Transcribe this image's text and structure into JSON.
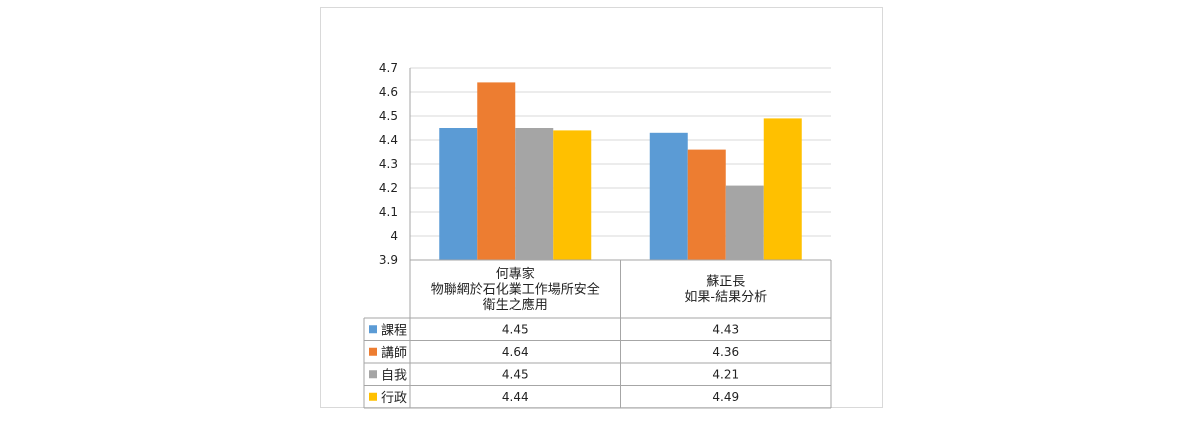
{
  "chart_data": {
    "type": "bar",
    "categories": [
      [
        "何專家",
        "物聯網於石化業工作場所安全",
        "衛生之應用"
      ],
      [
        "蘇正長",
        "如果-結果分析"
      ]
    ],
    "series": [
      {
        "name": "課程",
        "color": "#5b9bd5",
        "values": [
          4.45,
          4.43
        ]
      },
      {
        "name": "講師",
        "color": "#ed7d31",
        "values": [
          4.64,
          4.36
        ]
      },
      {
        "name": "自我",
        "color": "#a5a5a5",
        "values": [
          4.45,
          4.21
        ]
      },
      {
        "name": "行政",
        "color": "#ffc000",
        "values": [
          4.44,
          4.49
        ]
      }
    ],
    "y_ticks": [
      "3.9",
      "4",
      "4.1",
      "4.2",
      "4.3",
      "4.4",
      "4.5",
      "4.6",
      "4.7"
    ],
    "ylim": [
      3.9,
      4.7
    ],
    "grid": true,
    "legend": "data-table",
    "data_table_values": [
      [
        "4.45",
        "4.43"
      ],
      [
        "4.64",
        "4.36"
      ],
      [
        "4.45",
        "4.21"
      ],
      [
        "4.44",
        "4.49"
      ]
    ]
  },
  "colors": {
    "grid": "#d9d9d9",
    "axis": "#a6a6a6",
    "table_border": "#a6a6a6"
  }
}
